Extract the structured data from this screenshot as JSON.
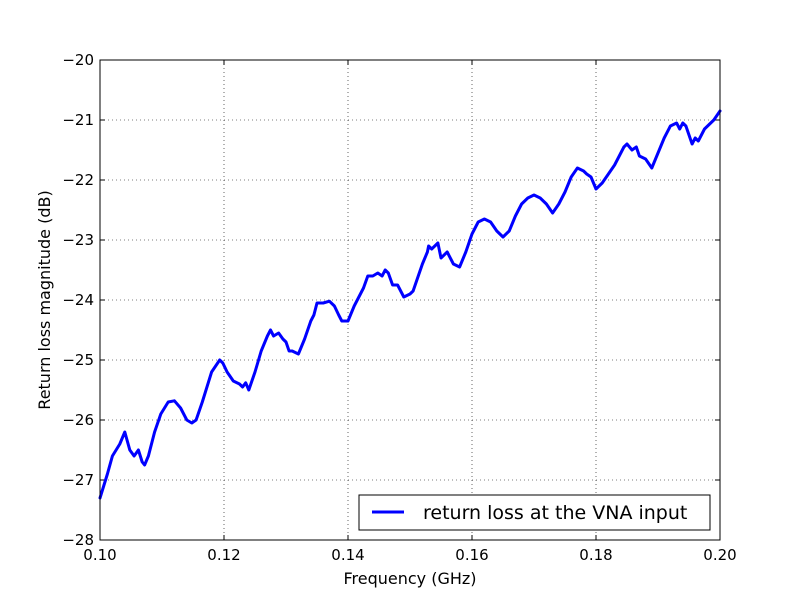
{
  "chart_data": {
    "type": "line",
    "title": "",
    "xlabel": "Frequency (GHz)",
    "ylabel": "Return loss magnitude (dB)",
    "xlim": [
      0.1,
      0.2
    ],
    "ylim": [
      -28,
      -20
    ],
    "xticks": [
      0.1,
      0.12,
      0.14,
      0.16,
      0.18,
      0.2
    ],
    "xtick_labels": [
      "0.10",
      "0.12",
      "0.14",
      "0.16",
      "0.18",
      "0.20"
    ],
    "yticks": [
      -28,
      -27,
      -26,
      -25,
      -24,
      -23,
      -22,
      -21,
      -20
    ],
    "ytick_labels": [
      "−28",
      "−27",
      "−26",
      "−25",
      "−24",
      "−23",
      "−22",
      "−21",
      "−20"
    ],
    "grid": true,
    "legend_position": "lower-right",
    "series": [
      {
        "name": "return loss at the VNA input",
        "color": "#0000ff",
        "x": [
          0.1,
          0.1012,
          0.102,
          0.1032,
          0.104,
          0.1048,
          0.1055,
          0.1062,
          0.1068,
          0.1072,
          0.1078,
          0.1088,
          0.1098,
          0.111,
          0.112,
          0.113,
          0.114,
          0.1148,
          0.1155,
          0.1165,
          0.118,
          0.1193,
          0.1198,
          0.1205,
          0.1215,
          0.1225,
          0.123,
          0.1235,
          0.124,
          0.125,
          0.126,
          0.127,
          0.1275,
          0.128,
          0.1288,
          0.1295,
          0.13,
          0.1305,
          0.131,
          0.132,
          0.133,
          0.134,
          0.1345,
          0.135,
          0.136,
          0.137,
          0.1378,
          0.1385,
          0.139,
          0.14,
          0.141,
          0.142,
          0.1425,
          0.1432,
          0.144,
          0.1448,
          0.1455,
          0.146,
          0.1465,
          0.1472,
          0.148,
          0.149,
          0.15,
          0.1505,
          0.151,
          0.152,
          0.1528,
          0.153,
          0.1535,
          0.154,
          0.1545,
          0.155,
          0.156,
          0.157,
          0.158,
          0.159,
          0.16,
          0.161,
          0.162,
          0.163,
          0.164,
          0.165,
          0.166,
          0.167,
          0.168,
          0.169,
          0.17,
          0.171,
          0.172,
          0.173,
          0.174,
          0.175,
          0.176,
          0.177,
          0.178,
          0.1785,
          0.1792,
          0.18,
          0.181,
          0.182,
          0.183,
          0.184,
          0.1845,
          0.185,
          0.1858,
          0.1865,
          0.187,
          0.188,
          0.189,
          0.19,
          0.191,
          0.192,
          0.193,
          0.1935,
          0.194,
          0.1945,
          0.195,
          0.1955,
          0.196,
          0.1965,
          0.197,
          0.1975,
          0.198,
          0.199,
          0.2
        ],
        "y": [
          -27.3,
          -26.9,
          -26.6,
          -26.4,
          -26.2,
          -26.5,
          -26.6,
          -26.5,
          -26.7,
          -26.75,
          -26.6,
          -26.2,
          -25.9,
          -25.7,
          -25.68,
          -25.8,
          -26.0,
          -26.05,
          -26.0,
          -25.7,
          -25.2,
          -25.0,
          -25.05,
          -25.2,
          -25.35,
          -25.4,
          -25.45,
          -25.38,
          -25.5,
          -25.2,
          -24.85,
          -24.6,
          -24.5,
          -24.6,
          -24.55,
          -24.65,
          -24.7,
          -24.85,
          -24.85,
          -24.9,
          -24.65,
          -24.35,
          -24.25,
          -24.05,
          -24.05,
          -24.02,
          -24.1,
          -24.25,
          -24.35,
          -24.35,
          -24.1,
          -23.9,
          -23.8,
          -23.6,
          -23.6,
          -23.55,
          -23.6,
          -23.5,
          -23.55,
          -23.75,
          -23.75,
          -23.95,
          -23.9,
          -23.85,
          -23.7,
          -23.4,
          -23.2,
          -23.1,
          -23.15,
          -23.1,
          -23.05,
          -23.3,
          -23.2,
          -23.4,
          -23.45,
          -23.2,
          -22.9,
          -22.7,
          -22.65,
          -22.7,
          -22.85,
          -22.95,
          -22.85,
          -22.6,
          -22.4,
          -22.3,
          -22.25,
          -22.3,
          -22.4,
          -22.55,
          -22.4,
          -22.2,
          -21.95,
          -21.8,
          -21.85,
          -21.9,
          -21.95,
          -22.15,
          -22.05,
          -21.9,
          -21.75,
          -21.55,
          -21.45,
          -21.4,
          -21.5,
          -21.45,
          -21.6,
          -21.65,
          -21.8,
          -21.55,
          -21.3,
          -21.1,
          -21.05,
          -21.15,
          -21.05,
          -21.1,
          -21.25,
          -21.4,
          -21.3,
          -21.35,
          -21.25,
          -21.15,
          -21.1,
          -21.0,
          -20.85
        ]
      }
    ]
  }
}
